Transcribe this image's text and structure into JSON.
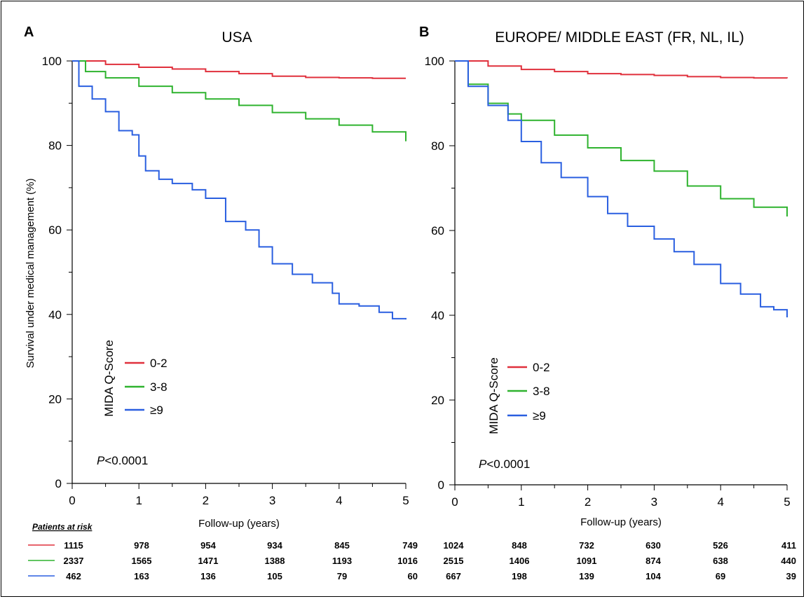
{
  "patients_at_risk_label": "Patients at risk",
  "colors": {
    "0-2": "#e0303c",
    "3-8": "#2fb32f",
    "≥9": "#2a5fe0"
  },
  "chart_data": [
    {
      "type": "line",
      "panel_letter": "A",
      "title": "USA",
      "xlabel": "Follow-up (years)",
      "ylabel": "Survival under medical management (%)",
      "xlim": [
        0,
        5
      ],
      "ylim": [
        0,
        100
      ],
      "xticks": [
        0,
        1,
        2,
        3,
        4,
        5
      ],
      "yticks": [
        0,
        20,
        40,
        60,
        80,
        100
      ],
      "legend_title": "MIDA Q-Score",
      "p_value_prefix": "P",
      "p_value_rest": "<0.0001",
      "series": [
        {
          "name": "0-2",
          "color": "#e0303c",
          "x": [
            0,
            0.5,
            1,
            1.5,
            2,
            2.5,
            3,
            3.5,
            4,
            4.5,
            5
          ],
          "y": [
            100,
            99.2,
            98.5,
            98.1,
            97.5,
            97,
            96.4,
            96.1,
            96,
            95.9,
            95.9
          ],
          "at_risk": [
            1115,
            978,
            954,
            934,
            845,
            749
          ]
        },
        {
          "name": "3-8",
          "color": "#2fb32f",
          "x": [
            0,
            0.2,
            0.5,
            1,
            1.5,
            2,
            2.5,
            3,
            3.5,
            4,
            4.5,
            5
          ],
          "y": [
            100,
            97.5,
            96,
            94,
            92.5,
            91,
            89.5,
            87.8,
            86.3,
            84.8,
            83.2,
            81
          ],
          "at_risk": [
            2337,
            1565,
            1471,
            1388,
            1193,
            1016
          ]
        },
        {
          "name": "≥9",
          "color": "#2a5fe0",
          "x": [
            0,
            0.1,
            0.3,
            0.5,
            0.7,
            0.9,
            1,
            1.1,
            1.3,
            1.5,
            1.8,
            2,
            2.3,
            2.6,
            2.8,
            3,
            3.3,
            3.6,
            3.9,
            4,
            4.3,
            4.6,
            4.8,
            5
          ],
          "y": [
            100,
            94,
            91,
            88,
            83.5,
            82.5,
            77.5,
            74,
            72,
            71,
            69.5,
            67.5,
            62,
            60,
            56,
            52,
            49.5,
            47.5,
            45,
            42.5,
            42,
            40.5,
            39,
            38.8
          ],
          "at_risk": [
            462,
            163,
            136,
            105,
            79,
            60
          ]
        }
      ]
    },
    {
      "type": "line",
      "panel_letter": "B",
      "title": "EUROPE/ MIDDLE EAST (FR, NL, IL)",
      "xlabel": "Follow-up (years)",
      "ylabel": "",
      "xlim": [
        0,
        5
      ],
      "ylim": [
        0,
        100
      ],
      "xticks": [
        0,
        1,
        2,
        3,
        4,
        5
      ],
      "yticks": [
        0,
        20,
        40,
        60,
        80,
        100
      ],
      "legend_title": "MIDA Q-Score",
      "p_value_prefix": "P",
      "p_value_rest": "<0.0001",
      "series": [
        {
          "name": "0-2",
          "color": "#e0303c",
          "x": [
            0,
            0.5,
            1,
            1.5,
            2,
            2.5,
            3,
            3.5,
            4,
            4.5,
            5
          ],
          "y": [
            100,
            98.8,
            98,
            97.5,
            97,
            96.8,
            96.6,
            96.3,
            96.1,
            96,
            95.9
          ],
          "at_risk": [
            1024,
            848,
            732,
            630,
            526,
            411
          ]
        },
        {
          "name": "3-8",
          "color": "#2fb32f",
          "x": [
            0,
            0.2,
            0.5,
            0.8,
            1,
            1.5,
            2,
            2.5,
            3,
            3.5,
            4,
            4.5,
            5
          ],
          "y": [
            100,
            94.5,
            90,
            87.5,
            86,
            82.5,
            79.5,
            76.5,
            74,
            70.5,
            67.5,
            65.5,
            63.3
          ],
          "at_risk": [
            2515,
            1406,
            1091,
            874,
            638,
            440
          ]
        },
        {
          "name": "≥9",
          "color": "#2a5fe0",
          "x": [
            0,
            0.2,
            0.5,
            0.8,
            1,
            1.3,
            1.6,
            2,
            2.3,
            2.6,
            3,
            3.3,
            3.6,
            4,
            4.3,
            4.6,
            4.8,
            4.95,
            5
          ],
          "y": [
            100,
            94,
            89.5,
            86,
            81,
            76,
            72.5,
            68,
            64,
            61,
            58,
            55,
            52,
            47.5,
            45,
            42,
            41.3,
            41.3,
            39.5
          ],
          "at_risk": [
            667,
            198,
            139,
            104,
            69,
            39
          ]
        }
      ]
    }
  ]
}
